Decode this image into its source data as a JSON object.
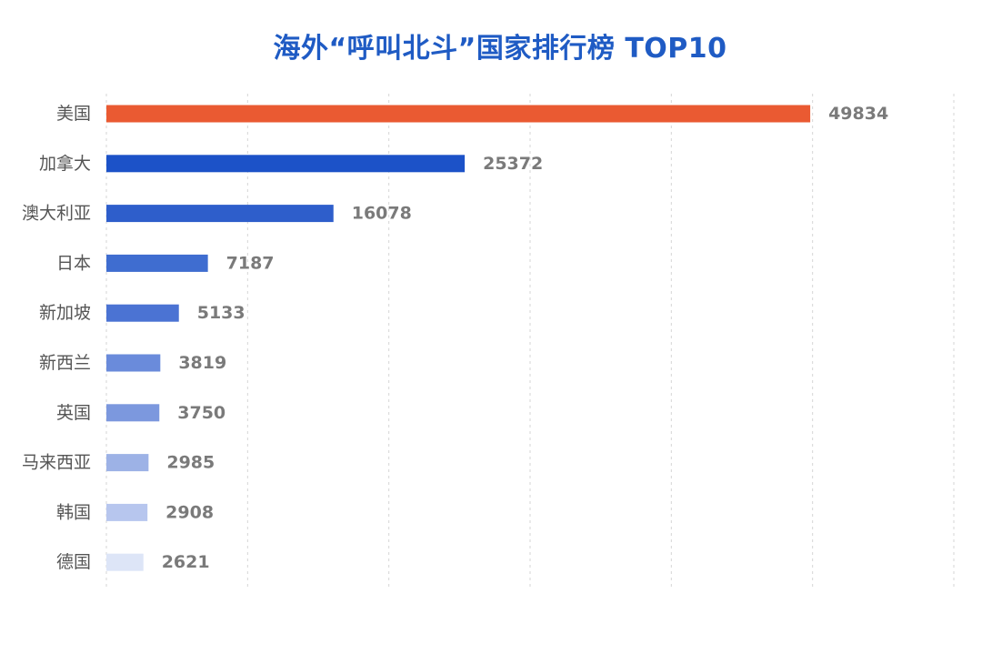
{
  "chart_data": {
    "type": "bar",
    "orientation": "horizontal",
    "title": "海外“呼叫北斗”国家排行榜 TOP10",
    "categories": [
      "美国",
      "加拿大",
      "澳大利亚",
      "日本",
      "新加坡",
      "新西兰",
      "英国",
      "马来西亚",
      "韩国",
      "德国"
    ],
    "values": [
      49834,
      25372,
      16078,
      7187,
      5133,
      3819,
      3750,
      2985,
      2908,
      2621
    ],
    "bar_colors": [
      "#ea5a32",
      "#1c52c8",
      "#2e5ecb",
      "#3f6dd0",
      "#4b73d3",
      "#6a8bdb",
      "#7c98de",
      "#9db2e6",
      "#b7c6ee",
      "#dde5f7"
    ],
    "xlim": [
      0,
      60000
    ],
    "grid": true,
    "legend": "none",
    "xlabel": "",
    "ylabel": ""
  }
}
